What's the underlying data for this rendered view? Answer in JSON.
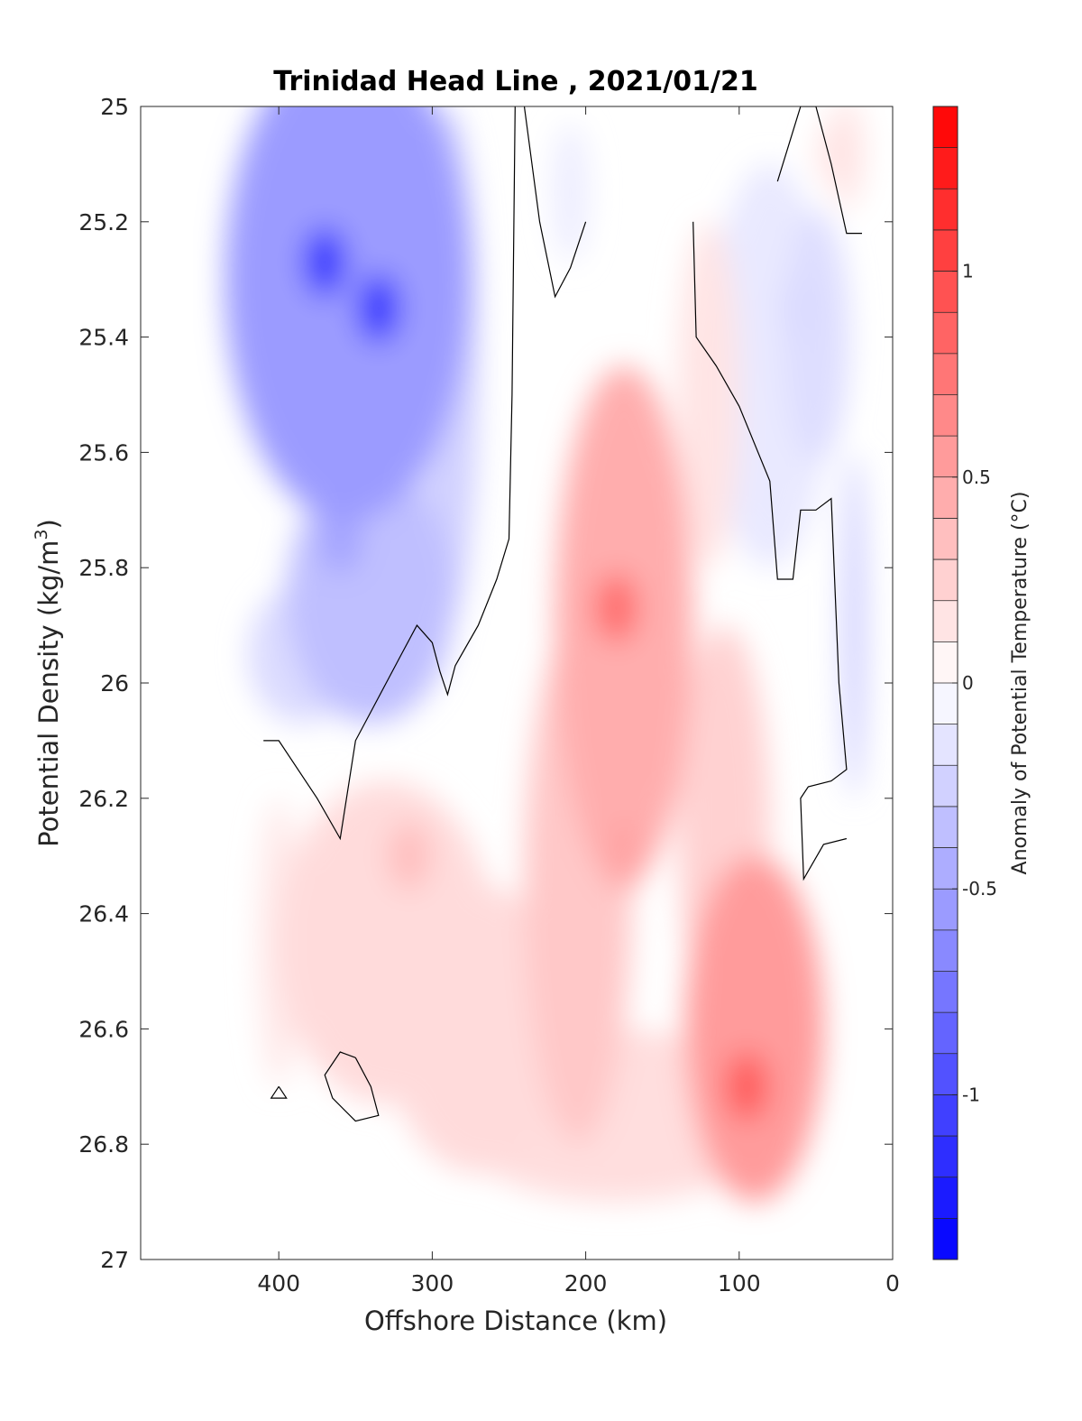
{
  "chart_data": {
    "type": "heatmap",
    "title": "Trinidad Head Line , 2021/01/21",
    "xlabel": "Offshore Distance (km)",
    "ylabel": "Potential Density (kg/m",
    "ylabel_superscript": "3",
    "ylabel_suffix": ")",
    "xlim": [
      490,
      0
    ],
    "ylim": [
      25,
      27
    ],
    "x_reversed": true,
    "y_reversed": true,
    "xticks": [
      400,
      300,
      200,
      100,
      0
    ],
    "xtick_labels": [
      "400",
      "300",
      "200",
      "100",
      "0"
    ],
    "yticks": [
      25,
      25.2,
      25.4,
      25.6,
      25.8,
      26,
      26.2,
      26.4,
      26.6,
      26.8,
      27
    ],
    "ytick_labels": [
      "25",
      "25.2",
      "25.4",
      "25.6",
      "25.8",
      "26",
      "26.2",
      "26.4",
      "26.6",
      "26.8",
      "27"
    ],
    "data_extent": {
      "x": [
        410,
        20
      ],
      "y": [
        25,
        26.9
      ]
    },
    "colorbar": {
      "label": "Anomaly of Potential Temperature (°C)",
      "range": [
        -1.4,
        1.4
      ],
      "level_step": 0.1,
      "ticks": [
        1,
        0.5,
        0,
        -0.5,
        -1
      ],
      "tick_labels": [
        "1",
        "0.5",
        "0",
        "-0.5",
        "-1"
      ],
      "colormap": "blue-white-red",
      "color_negative_max": "#0000ff",
      "color_zero": "#ffffff",
      "color_positive_max": "#ff0000"
    },
    "zero_contour_color": "#000000",
    "features": [
      {
        "name": "cold core",
        "x": 370,
        "y": 25.27,
        "anomaly": -1.1
      },
      {
        "name": "cold core",
        "x": 335,
        "y": 25.35,
        "anomaly": -1.1
      },
      {
        "name": "cold tongue",
        "x": 360,
        "y": 25.75,
        "anomaly": -0.5
      },
      {
        "name": "warm core",
        "x": 180,
        "y": 25.87,
        "anomaly": 0.8
      },
      {
        "name": "warm core",
        "x": 95,
        "y": 26.7,
        "anomaly": 0.9
      },
      {
        "name": "warm band",
        "x": 175,
        "y": 26.3,
        "anomaly": 0.5
      },
      {
        "name": "warm patch",
        "x": 315,
        "y": 26.3,
        "anomaly": 0.35
      },
      {
        "name": "nearshore cool",
        "x": 60,
        "y": 25.35,
        "anomaly": -0.2
      },
      {
        "name": "upper warm patch",
        "x": 35,
        "y": 25.08,
        "anomaly": 0.15
      }
    ]
  }
}
